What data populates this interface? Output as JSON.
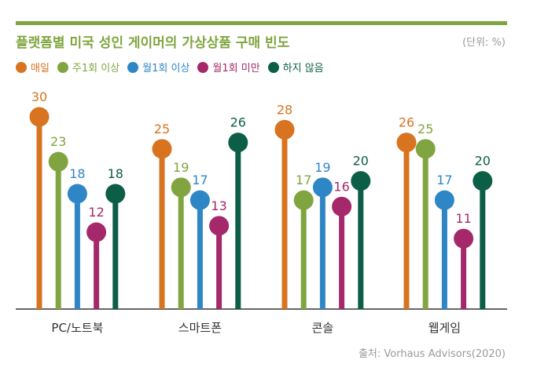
{
  "title": "플랫폼별 미국 성인 게이머의 가상상품 구매 빈도",
  "unit": "(단위: %)",
  "source": "출처: Vorhaus Advisors(2020)",
  "colors": [
    "#d8731f",
    "#80a540",
    "#2f86c6",
    "#a4286a",
    "#0d5e46"
  ],
  "chart_data": {
    "type": "bar",
    "title": "플랫폼별 미국 성인 게이머의 가상상품 구매 빈도",
    "xlabel": "",
    "ylabel": "",
    "ylim": [
      0,
      30
    ],
    "legend_position": "top-left",
    "grid": false,
    "categories": [
      "PC/노트북",
      "스마트폰",
      "콘솔",
      "웹게임"
    ],
    "series": [
      {
        "name": "매일",
        "values": [
          30,
          25,
          28,
          26
        ]
      },
      {
        "name": "주1회 이상",
        "values": [
          23,
          19,
          17,
          25
        ]
      },
      {
        "name": "월1회 이상",
        "values": [
          18,
          17,
          19,
          17
        ]
      },
      {
        "name": "월1회 미만",
        "values": [
          12,
          13,
          16,
          11
        ]
      },
      {
        "name": "하지 않음",
        "values": [
          18,
          26,
          20,
          20
        ]
      }
    ]
  }
}
